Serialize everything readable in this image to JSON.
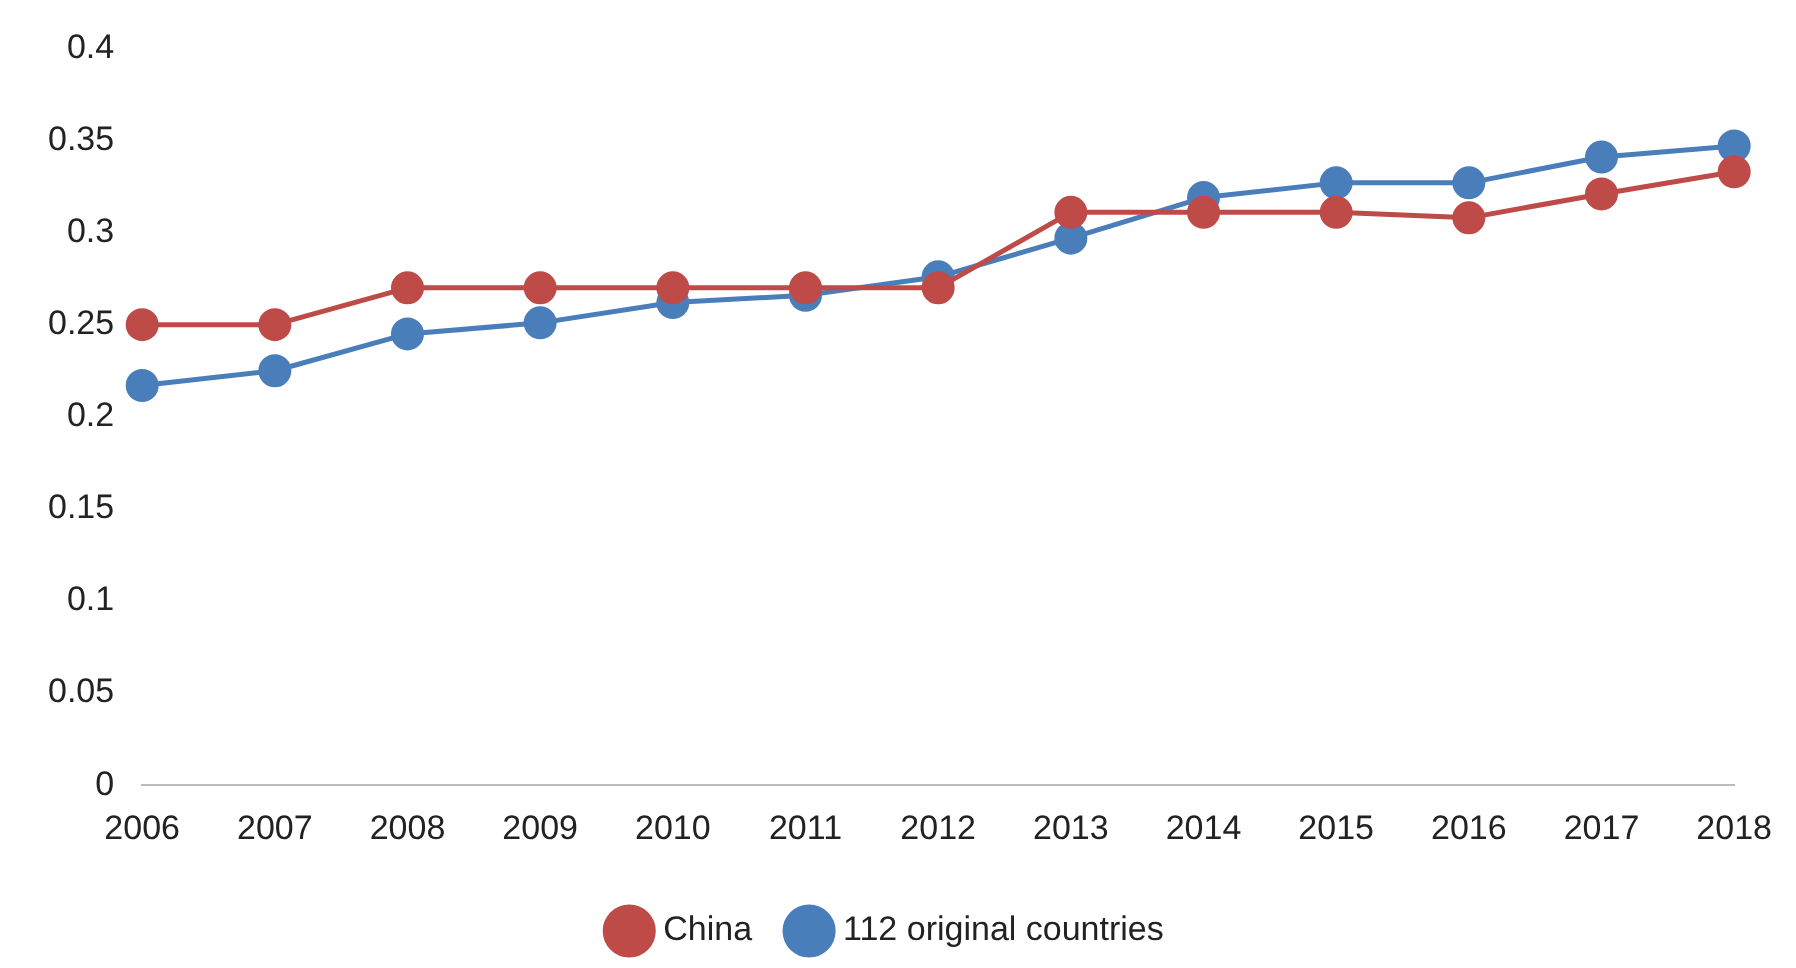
{
  "chart_data": {
    "type": "line",
    "categories": [
      "2006",
      "2007",
      "2008",
      "2009",
      "2010",
      "2011",
      "2012",
      "2013",
      "2014",
      "2015",
      "2016",
      "2017",
      "2018"
    ],
    "series": [
      {
        "name": "112 original countries",
        "color": "#4a7ebb",
        "values": [
          0.217,
          0.225,
          0.245,
          0.251,
          0.262,
          0.266,
          0.276,
          0.297,
          0.319,
          0.327,
          0.327,
          0.341,
          0.347
        ]
      },
      {
        "name": "China",
        "color": "#be4b48",
        "values": [
          0.25,
          0.25,
          0.27,
          0.27,
          0.27,
          0.27,
          0.27,
          0.311,
          0.311,
          0.311,
          0.308,
          0.321,
          0.333
        ]
      }
    ],
    "ylim": [
      0,
      0.4
    ],
    "yticks": [
      0,
      0.05,
      0.1,
      0.15,
      0.2,
      0.25,
      0.3,
      0.35,
      0.4
    ],
    "grid": false,
    "legend": "bottom",
    "marker": "circle",
    "line_style": "solid"
  }
}
